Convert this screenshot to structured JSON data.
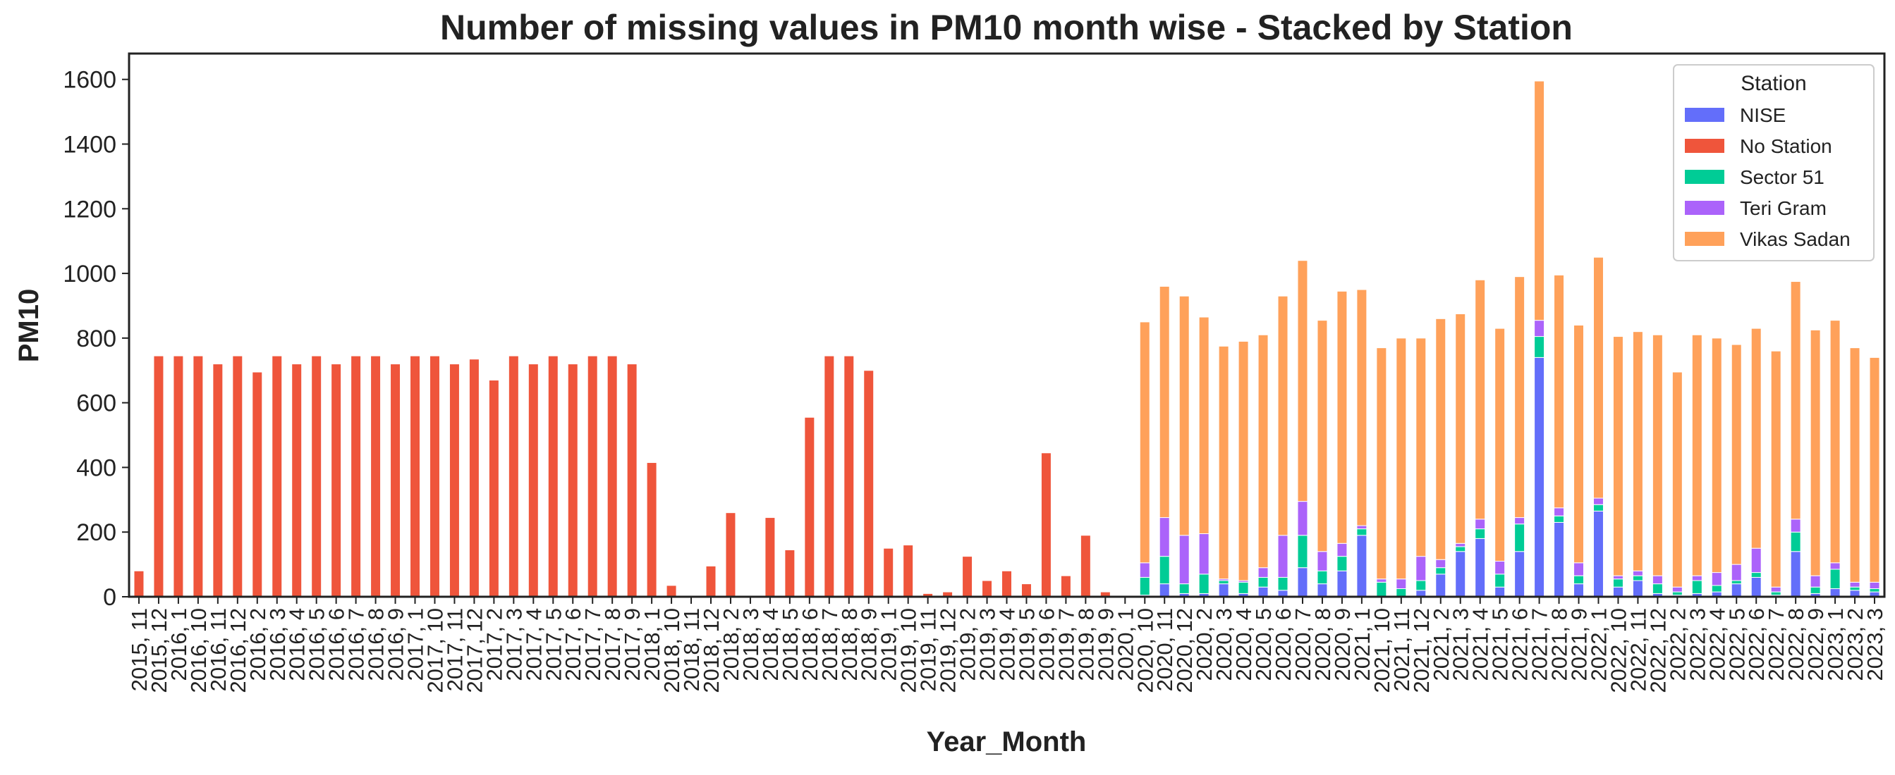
{
  "chart_data": {
    "type": "bar",
    "stacked": true,
    "title": "Number of missing values in PM10 month wise - Stacked by Station",
    "xlabel": "Year_Month",
    "ylabel": "PM10",
    "ylim": [
      0,
      1680
    ],
    "yticks": [
      0,
      200,
      400,
      600,
      800,
      1000,
      1200,
      1400,
      1600
    ],
    "grid": false,
    "legend": {
      "title": "Station",
      "placement": "top-right"
    },
    "categories": [
      "2015, 11",
      "2015, 12",
      "2016, 1",
      "2016, 10",
      "2016, 11",
      "2016, 12",
      "2016, 2",
      "2016, 3",
      "2016, 4",
      "2016, 5",
      "2016, 6",
      "2016, 7",
      "2016, 8",
      "2016, 9",
      "2017, 1",
      "2017, 10",
      "2017, 11",
      "2017, 12",
      "2017, 2",
      "2017, 3",
      "2017, 4",
      "2017, 5",
      "2017, 6",
      "2017, 7",
      "2017, 8",
      "2017, 9",
      "2018, 1",
      "2018, 10",
      "2018, 11",
      "2018, 12",
      "2018, 2",
      "2018, 3",
      "2018, 4",
      "2018, 5",
      "2018, 6",
      "2018, 7",
      "2018, 8",
      "2018, 9",
      "2019, 1",
      "2019, 10",
      "2019, 11",
      "2019, 12",
      "2019, 2",
      "2019, 3",
      "2019, 4",
      "2019, 5",
      "2019, 6",
      "2019, 7",
      "2019, 8",
      "2019, 9",
      "2020, 1",
      "2020, 10",
      "2020, 11",
      "2020, 12",
      "2020, 2",
      "2020, 3",
      "2020, 4",
      "2020, 5",
      "2020, 6",
      "2020, 7",
      "2020, 8",
      "2020, 9",
      "2021, 1",
      "2021, 10",
      "2021, 11",
      "2021, 12",
      "2021, 2",
      "2021, 3",
      "2021, 4",
      "2021, 5",
      "2021, 6",
      "2021, 7",
      "2021, 8",
      "2021, 9",
      "2022, 1",
      "2022, 10",
      "2022, 11",
      "2022, 12",
      "2022, 2",
      "2022, 3",
      "2022, 4",
      "2022, 5",
      "2022, 6",
      "2022, 7",
      "2022, 8",
      "2022, 9",
      "2023, 1",
      "2023, 2",
      "2023, 3"
    ],
    "series": [
      {
        "name": "NISE",
        "color": "#636efa",
        "values": [
          0,
          0,
          0,
          0,
          0,
          0,
          0,
          0,
          0,
          0,
          0,
          0,
          0,
          0,
          0,
          0,
          0,
          0,
          0,
          0,
          0,
          0,
          0,
          0,
          0,
          0,
          0,
          0,
          0,
          0,
          0,
          0,
          0,
          0,
          0,
          0,
          0,
          0,
          0,
          0,
          0,
          0,
          0,
          0,
          0,
          0,
          0,
          0,
          0,
          0,
          0,
          5,
          40,
          10,
          10,
          40,
          10,
          30,
          20,
          90,
          40,
          80,
          190,
          0,
          0,
          20,
          70,
          140,
          180,
          30,
          140,
          740,
          230,
          40,
          265,
          30,
          50,
          10,
          5,
          10,
          15,
          40,
          60,
          5,
          140,
          10,
          25,
          20,
          15
        ]
      },
      {
        "name": "No Station",
        "color": "#ef553b",
        "values": [
          80,
          745,
          745,
          745,
          720,
          745,
          695,
          745,
          720,
          745,
          720,
          745,
          745,
          720,
          745,
          745,
          720,
          735,
          670,
          745,
          720,
          745,
          720,
          745,
          745,
          720,
          415,
          35,
          0,
          95,
          260,
          0,
          245,
          145,
          555,
          745,
          745,
          700,
          150,
          160,
          10,
          15,
          125,
          50,
          80,
          40,
          445,
          65,
          190,
          15,
          0,
          0,
          0,
          0,
          0,
          0,
          0,
          0,
          0,
          0,
          0,
          0,
          0,
          0,
          0,
          0,
          0,
          0,
          0,
          0,
          0,
          0,
          0,
          0,
          0,
          0,
          0,
          0,
          0,
          0,
          0,
          0,
          0,
          0,
          0,
          0,
          0,
          0,
          0
        ]
      },
      {
        "name": "Sector 51",
        "color": "#00cc96",
        "values": [
          0,
          0,
          0,
          0,
          0,
          0,
          0,
          0,
          0,
          0,
          0,
          0,
          0,
          0,
          0,
          0,
          0,
          0,
          0,
          0,
          0,
          0,
          0,
          0,
          0,
          0,
          0,
          0,
          0,
          0,
          0,
          0,
          0,
          0,
          0,
          0,
          0,
          0,
          0,
          0,
          0,
          0,
          0,
          0,
          0,
          0,
          0,
          0,
          0,
          0,
          0,
          55,
          85,
          30,
          60,
          10,
          35,
          30,
          40,
          100,
          40,
          45,
          20,
          45,
          25,
          30,
          20,
          15,
          30,
          40,
          85,
          65,
          20,
          25,
          20,
          25,
          15,
          30,
          10,
          40,
          20,
          10,
          15,
          10,
          60,
          20,
          60,
          10,
          10
        ]
      },
      {
        "name": "Teri Gram",
        "color": "#ab63fa",
        "values": [
          0,
          0,
          0,
          0,
          0,
          0,
          0,
          0,
          0,
          0,
          0,
          0,
          0,
          0,
          0,
          0,
          0,
          0,
          0,
          0,
          0,
          0,
          0,
          0,
          0,
          0,
          0,
          0,
          0,
          0,
          0,
          0,
          0,
          0,
          0,
          0,
          0,
          0,
          0,
          0,
          0,
          0,
          0,
          0,
          0,
          0,
          0,
          0,
          0,
          0,
          0,
          45,
          120,
          150,
          125,
          5,
          5,
          30,
          130,
          105,
          60,
          40,
          10,
          10,
          30,
          75,
          25,
          10,
          30,
          40,
          20,
          50,
          25,
          40,
          20,
          10,
          15,
          25,
          15,
          15,
          40,
          50,
          75,
          15,
          40,
          35,
          20,
          15,
          20
        ]
      },
      {
        "name": "Vikas Sadan",
        "color": "#ffa15a",
        "values": [
          0,
          0,
          0,
          0,
          0,
          0,
          0,
          0,
          0,
          0,
          0,
          0,
          0,
          0,
          0,
          0,
          0,
          0,
          0,
          0,
          0,
          0,
          0,
          0,
          0,
          0,
          0,
          0,
          0,
          0,
          0,
          0,
          0,
          0,
          0,
          0,
          0,
          0,
          0,
          0,
          0,
          0,
          0,
          0,
          0,
          0,
          0,
          0,
          0,
          0,
          0,
          745,
          715,
          740,
          670,
          720,
          740,
          720,
          740,
          745,
          715,
          780,
          730,
          715,
          745,
          675,
          745,
          710,
          740,
          720,
          745,
          740,
          720,
          735,
          745,
          740,
          740,
          745,
          665,
          745,
          725,
          680,
          680,
          730,
          735,
          760,
          750,
          725,
          695
        ]
      }
    ]
  }
}
